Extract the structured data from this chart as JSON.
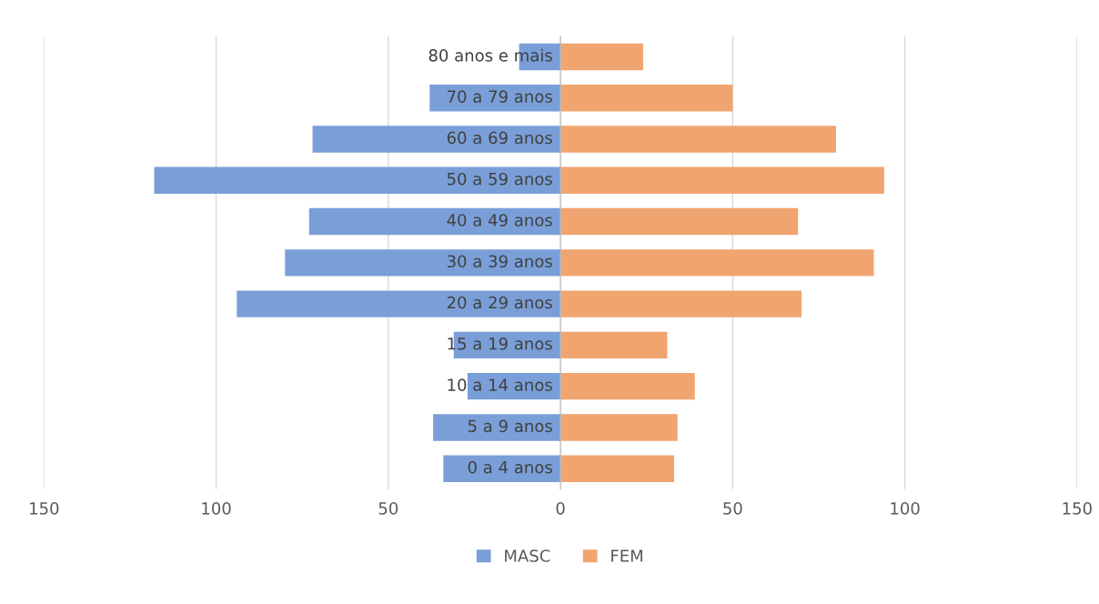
{
  "chart_data": {
    "type": "bar",
    "orientation": "horizontal",
    "categories": [
      "80 anos e mais",
      "70 a 79 anos",
      "60 a 69 anos",
      "50 a 59 anos",
      "40 a 49 anos",
      "30 a 39 anos",
      "20 a 29 anos",
      "15 a 19 anos",
      "10 a 14 anos",
      "5 a 9 anos",
      "0 a 4 anos"
    ],
    "series": [
      {
        "name": "MASC",
        "color": "#7a9fd8",
        "values": [
          -12,
          -38,
          -72,
          -118,
          -73,
          -80,
          -94,
          -31,
          -27,
          -37,
          -34
        ]
      },
      {
        "name": "FEM",
        "color": "#f0a570",
        "values": [
          24,
          50,
          80,
          94,
          69,
          91,
          70,
          31,
          39,
          34,
          33
        ]
      }
    ],
    "xlim": [
      -150,
      150
    ],
    "xticks": [
      {
        "value": -150,
        "label": "150"
      },
      {
        "value": -100,
        "label": "100"
      },
      {
        "value": -50,
        "label": "50"
      },
      0,
      50,
      100,
      150
    ],
    "grid": "x",
    "legend": "bottom",
    "stacked": true
  }
}
